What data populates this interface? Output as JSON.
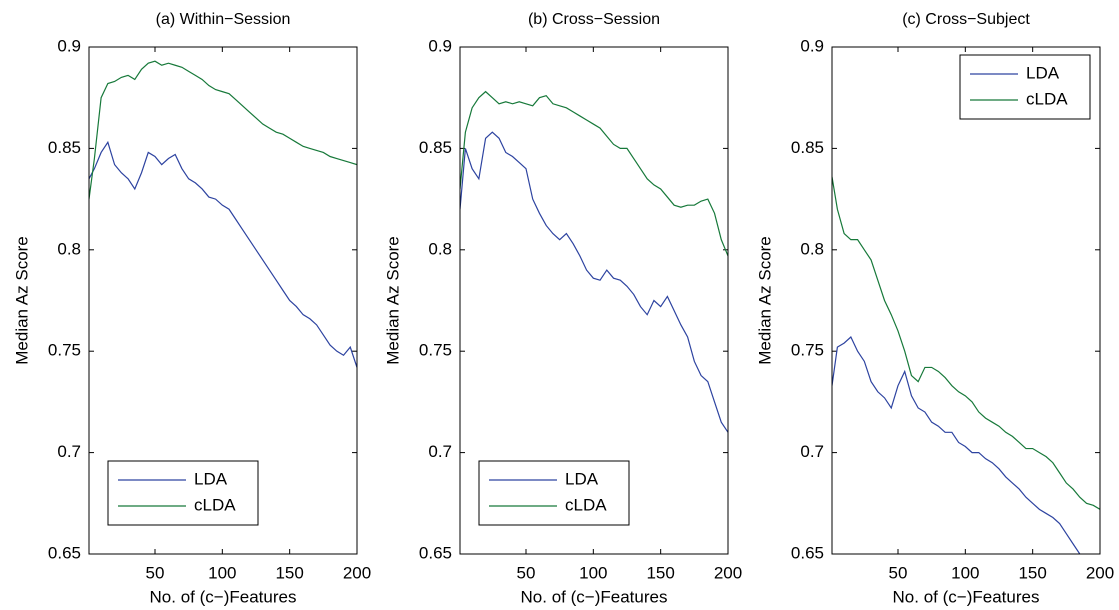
{
  "chart_data": [
    {
      "type": "line",
      "title": "(a) Within−Session",
      "xlabel": "No. of (c−)Features",
      "ylabel": "Median Az Score",
      "x": [
        1,
        5,
        10,
        15,
        20,
        25,
        30,
        35,
        40,
        45,
        50,
        55,
        60,
        65,
        70,
        75,
        80,
        85,
        90,
        95,
        100,
        105,
        110,
        115,
        120,
        125,
        130,
        135,
        140,
        145,
        150,
        155,
        160,
        165,
        170,
        175,
        180,
        185,
        190,
        195,
        200
      ],
      "series": [
        {
          "name": "LDA",
          "color": "#2d43a0",
          "values": [
            0.835,
            0.84,
            0.848,
            0.853,
            0.842,
            0.838,
            0.835,
            0.83,
            0.838,
            0.848,
            0.846,
            0.842,
            0.845,
            0.847,
            0.84,
            0.835,
            0.833,
            0.83,
            0.826,
            0.825,
            0.822,
            0.82,
            0.815,
            0.81,
            0.805,
            0.8,
            0.795,
            0.79,
            0.785,
            0.78,
            0.775,
            0.772,
            0.768,
            0.766,
            0.763,
            0.758,
            0.753,
            0.75,
            0.748,
            0.752,
            0.742
          ]
        },
        {
          "name": "cLDA",
          "color": "#17793a",
          "values": [
            0.825,
            0.845,
            0.875,
            0.882,
            0.883,
            0.885,
            0.886,
            0.884,
            0.889,
            0.892,
            0.893,
            0.891,
            0.892,
            0.891,
            0.89,
            0.888,
            0.886,
            0.884,
            0.881,
            0.879,
            0.878,
            0.877,
            0.874,
            0.871,
            0.868,
            0.865,
            0.862,
            0.86,
            0.858,
            0.857,
            0.855,
            0.853,
            0.851,
            0.85,
            0.849,
            0.848,
            0.846,
            0.845,
            0.844,
            0.843,
            0.842
          ]
        }
      ],
      "xlim": [
        1,
        200
      ],
      "ylim": [
        0.65,
        0.9
      ],
      "xticks": [
        50,
        100,
        150,
        200
      ],
      "yticks": [
        0.65,
        0.7,
        0.75,
        0.8,
        0.85,
        0.9
      ],
      "legend": "lower left"
    },
    {
      "type": "line",
      "title": "(b) Cross−Session",
      "xlabel": "No. of (c−)Features",
      "ylabel": "Median Az Score",
      "x": [
        1,
        5,
        10,
        15,
        20,
        25,
        30,
        35,
        40,
        45,
        50,
        55,
        60,
        65,
        70,
        75,
        80,
        85,
        90,
        95,
        100,
        105,
        110,
        115,
        120,
        125,
        130,
        135,
        140,
        145,
        150,
        155,
        160,
        165,
        170,
        175,
        180,
        185,
        190,
        195,
        200
      ],
      "series": [
        {
          "name": "LDA",
          "color": "#2d43a0",
          "values": [
            0.82,
            0.85,
            0.84,
            0.835,
            0.855,
            0.858,
            0.855,
            0.848,
            0.846,
            0.843,
            0.84,
            0.825,
            0.818,
            0.812,
            0.808,
            0.805,
            0.808,
            0.803,
            0.797,
            0.79,
            0.786,
            0.785,
            0.79,
            0.786,
            0.785,
            0.782,
            0.778,
            0.772,
            0.768,
            0.775,
            0.772,
            0.777,
            0.77,
            0.763,
            0.757,
            0.745,
            0.738,
            0.735,
            0.725,
            0.715,
            0.71
          ]
        },
        {
          "name": "cLDA",
          "color": "#17793a",
          "values": [
            0.83,
            0.858,
            0.87,
            0.875,
            0.878,
            0.875,
            0.872,
            0.873,
            0.872,
            0.873,
            0.872,
            0.871,
            0.875,
            0.876,
            0.872,
            0.871,
            0.87,
            0.868,
            0.866,
            0.864,
            0.862,
            0.86,
            0.856,
            0.852,
            0.85,
            0.85,
            0.845,
            0.84,
            0.835,
            0.832,
            0.83,
            0.826,
            0.822,
            0.821,
            0.822,
            0.822,
            0.824,
            0.825,
            0.818,
            0.805,
            0.797
          ]
        }
      ],
      "xlim": [
        1,
        200
      ],
      "ylim": [
        0.65,
        0.9
      ],
      "xticks": [
        50,
        100,
        150,
        200
      ],
      "yticks": [
        0.65,
        0.7,
        0.75,
        0.8,
        0.85,
        0.9
      ],
      "legend": "lower left"
    },
    {
      "type": "line",
      "title": "(c) Cross−Subject",
      "xlabel": "No. of (c−)Features",
      "ylabel": "Median Az Score",
      "x": [
        1,
        5,
        10,
        15,
        20,
        25,
        30,
        35,
        40,
        45,
        50,
        55,
        60,
        65,
        70,
        75,
        80,
        85,
        90,
        95,
        100,
        105,
        110,
        115,
        120,
        125,
        130,
        135,
        140,
        145,
        150,
        155,
        160,
        165,
        170,
        175,
        180,
        185,
        190,
        195,
        200
      ],
      "series": [
        {
          "name": "LDA",
          "color": "#2d43a0",
          "values": [
            0.733,
            0.752,
            0.754,
            0.757,
            0.75,
            0.745,
            0.735,
            0.73,
            0.727,
            0.722,
            0.733,
            0.74,
            0.728,
            0.722,
            0.72,
            0.715,
            0.713,
            0.71,
            0.71,
            0.705,
            0.703,
            0.7,
            0.7,
            0.697,
            0.695,
            0.692,
            0.688,
            0.685,
            0.682,
            0.678,
            0.675,
            0.672,
            0.67,
            0.668,
            0.665,
            0.66,
            0.655,
            0.65,
            0.645,
            0.64,
            0.638
          ]
        },
        {
          "name": "cLDA",
          "color": "#17793a",
          "values": [
            0.836,
            0.82,
            0.808,
            0.805,
            0.805,
            0.8,
            0.795,
            0.785,
            0.775,
            0.768,
            0.76,
            0.75,
            0.738,
            0.735,
            0.742,
            0.742,
            0.74,
            0.737,
            0.733,
            0.73,
            0.728,
            0.725,
            0.72,
            0.717,
            0.715,
            0.713,
            0.71,
            0.708,
            0.705,
            0.702,
            0.702,
            0.7,
            0.698,
            0.695,
            0.69,
            0.685,
            0.682,
            0.678,
            0.675,
            0.674,
            0.672
          ]
        }
      ],
      "xlim": [
        1,
        200
      ],
      "ylim": [
        0.65,
        0.9
      ],
      "xticks": [
        50,
        100,
        150,
        200
      ],
      "yticks": [
        0.65,
        0.7,
        0.75,
        0.8,
        0.85,
        0.9
      ],
      "legend": "upper right"
    }
  ]
}
